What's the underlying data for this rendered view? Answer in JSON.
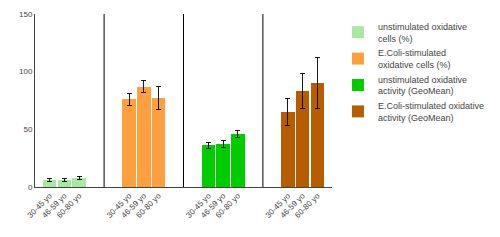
{
  "chart_data": {
    "type": "bar",
    "categories": [
      "30-45 yo",
      "46-59 yo",
      "60-80 yo"
    ],
    "series": [
      {
        "name": "unstimulated oxidative\ncells (%)",
        "color": "#A8E8A0",
        "values": [
          6,
          6,
          8
        ],
        "errors": [
          1.2,
          1.2,
          1.5
        ]
      },
      {
        "name": "E.Coli-stimulated\noxidative cells (%)",
        "color": "#FFA040",
        "values": [
          76,
          87,
          77
        ],
        "errors": [
          5,
          5,
          10
        ]
      },
      {
        "name": "unstimulated oxidative\nactivity (GeoMean)",
        "color": "#00CC00",
        "values": [
          36,
          37,
          46
        ],
        "errors": [
          3,
          3,
          3
        ]
      },
      {
        "name": "E.Coli-stimulated oxidative\nactivity (GeoMean)",
        "color": "#B85C00",
        "values": [
          65,
          83,
          90
        ],
        "errors": [
          12,
          15,
          22
        ]
      }
    ],
    "ylim": [
      0,
      150
    ],
    "yticks": [
      0,
      50,
      100,
      150
    ],
    "grid": false,
    "legend": "right"
  }
}
